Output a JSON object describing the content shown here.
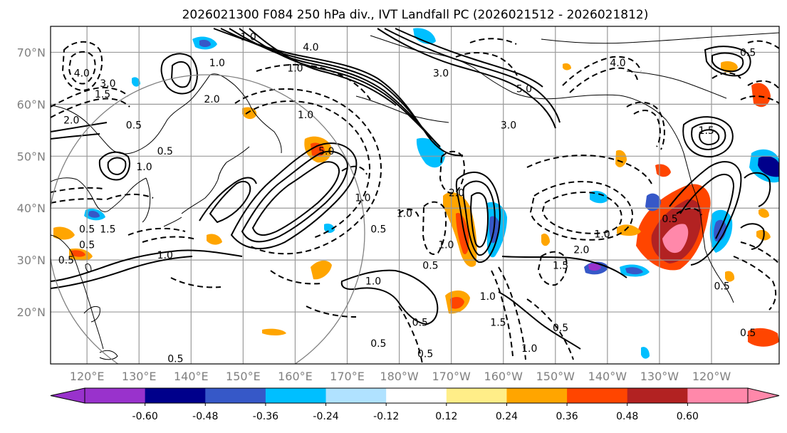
{
  "title": "2026021300 F084 250 hPa div., IVT Landfall PC (2026021512 - 2026021812)",
  "map": {
    "lat_labels": [
      "70°N",
      "60°N",
      "50°N",
      "40°N",
      "30°N",
      "20°N"
    ],
    "lon_labels": [
      "120°E",
      "130°E",
      "140°E",
      "150°E",
      "160°E",
      "170°E",
      "180°W",
      "170°W",
      "160°W",
      "150°W",
      "140°W",
      "130°W",
      "120°W"
    ],
    "grid_lats": [
      70,
      60,
      50,
      40,
      30,
      20
    ],
    "grid_lons": [
      120,
      130,
      140,
      150,
      160,
      170,
      180,
      190,
      200,
      210,
      220,
      230,
      240
    ],
    "lat_range": [
      10,
      75
    ],
    "lon_range": [
      113,
      253
    ],
    "contour_labels": [
      {
        "text": "4.0",
        "lon": 119,
        "lat": 66
      },
      {
        "text": "3.0",
        "lon": 124,
        "lat": 64
      },
      {
        "text": "1.5",
        "lon": 123,
        "lat": 62
      },
      {
        "text": "2.0",
        "lon": 117,
        "lat": 57
      },
      {
        "text": "0.5",
        "lon": 129,
        "lat": 56
      },
      {
        "text": "0.5",
        "lon": 135,
        "lat": 51
      },
      {
        "text": "1.0",
        "lon": 131,
        "lat": 48
      },
      {
        "text": "1.0",
        "lon": 151,
        "lat": 73
      },
      {
        "text": "1.0",
        "lon": 145,
        "lat": 68
      },
      {
        "text": "2.0",
        "lon": 144,
        "lat": 61
      },
      {
        "text": "1.0",
        "lon": 162,
        "lat": 58
      },
      {
        "text": "1.0",
        "lon": 160,
        "lat": 67
      },
      {
        "text": "4.0",
        "lon": 163,
        "lat": 71
      },
      {
        "text": "5.0",
        "lon": 166,
        "lat": 51
      },
      {
        "text": "1.0",
        "lon": 173,
        "lat": 42
      },
      {
        "text": "0.5",
        "lon": 176,
        "lat": 36
      },
      {
        "text": "1.0",
        "lon": 181,
        "lat": 39
      },
      {
        "text": "3.0",
        "lon": 188,
        "lat": 66
      },
      {
        "text": "3.0",
        "lon": 201,
        "lat": 56
      },
      {
        "text": "5.0",
        "lon": 204,
        "lat": 63
      },
      {
        "text": "4.0",
        "lon": 222,
        "lat": 68
      },
      {
        "text": "2.0",
        "lon": 191,
        "lat": 43
      },
      {
        "text": "1.0",
        "lon": 189,
        "lat": 33
      },
      {
        "text": "1.0",
        "lon": 175,
        "lat": 26
      },
      {
        "text": "0.5",
        "lon": 186,
        "lat": 29
      },
      {
        "text": "0.5",
        "lon": 184,
        "lat": 18
      },
      {
        "text": "0.5",
        "lon": 176,
        "lat": 14
      },
      {
        "text": "0.5",
        "lon": 185,
        "lat": 12
      },
      {
        "text": "0.5",
        "lon": 137,
        "lat": 11
      },
      {
        "text": "1.0",
        "lon": 197,
        "lat": 23
      },
      {
        "text": "1.5",
        "lon": 199,
        "lat": 18
      },
      {
        "text": "0.5",
        "lon": 211,
        "lat": 17
      },
      {
        "text": "1.0",
        "lon": 205,
        "lat": 13
      },
      {
        "text": "1.5",
        "lon": 211,
        "lat": 29
      },
      {
        "text": "2.0",
        "lon": 215,
        "lat": 32
      },
      {
        "text": "1.0",
        "lon": 219,
        "lat": 35
      },
      {
        "text": "0.5",
        "lon": 232,
        "lat": 38
      },
      {
        "text": "1.5",
        "lon": 239,
        "lat": 55
      },
      {
        "text": "0.5",
        "lon": 247,
        "lat": 70
      },
      {
        "text": "0.5",
        "lon": 242,
        "lat": 25
      },
      {
        "text": "0.5",
        "lon": 247,
        "lat": 16
      },
      {
        "text": "0.5",
        "lon": 120,
        "lat": 36
      },
      {
        "text": "1.5",
        "lon": 124,
        "lat": 36
      },
      {
        "text": "0.5",
        "lon": 120,
        "lat": 33
      },
      {
        "text": "1.0",
        "lon": 135,
        "lat": 31
      },
      {
        "text": "0.5",
        "lon": 116,
        "lat": 30
      }
    ]
  },
  "colorbar": {
    "tick_labels": [
      "-0.60",
      "-0.48",
      "-0.36",
      "-0.24",
      "-0.12",
      "0.12",
      "0.24",
      "0.36",
      "0.48",
      "0.60"
    ],
    "colors": [
      "#9932cc",
      "#00008b",
      "#3658c8",
      "#00bfff",
      "#b0e2ff",
      "#ffffff",
      "#ffee88",
      "#ffa500",
      "#ff4500",
      "#b22222",
      "#ff88aa",
      "#ff88aa"
    ],
    "low_extend_color": "#9932cc",
    "high_extend_color": "#ff88aa"
  }
}
